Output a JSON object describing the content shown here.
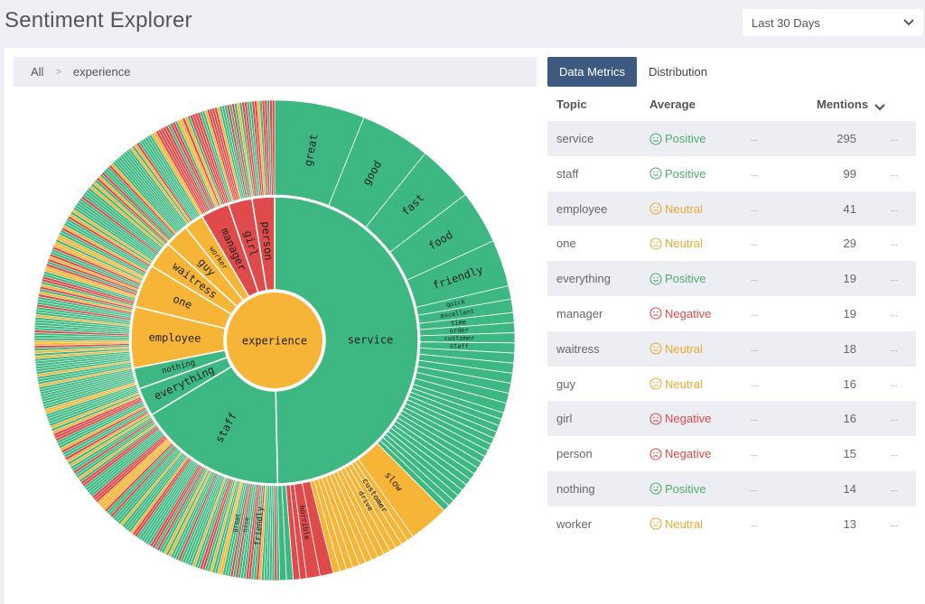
{
  "app": {
    "title": "Sentiment Explorer"
  },
  "date_range": {
    "selected": "Last 30 Days",
    "icon": "chevron-down-icon"
  },
  "breadcrumb": {
    "root": "All",
    "separator": ">",
    "current": "experience"
  },
  "tabs": [
    {
      "label": "Data Metrics",
      "active": true
    },
    {
      "label": "Distribution",
      "active": false
    }
  ],
  "table": {
    "headers": {
      "topic": "Topic",
      "average": "Average",
      "mentions": "Mentions"
    },
    "sort_icon": "chevron-down-icon",
    "rows": [
      {
        "topic": "service",
        "sentiment": "Positive",
        "mentions": "295",
        "more1": "...",
        "more2": "..."
      },
      {
        "topic": "staff",
        "sentiment": "Positive",
        "mentions": "99",
        "more1": "...",
        "more2": "..."
      },
      {
        "topic": "employee",
        "sentiment": "Neutral",
        "mentions": "41",
        "more1": "...",
        "more2": "..."
      },
      {
        "topic": "one",
        "sentiment": "Neutral",
        "mentions": "29",
        "more1": "...",
        "more2": "..."
      },
      {
        "topic": "everything",
        "sentiment": "Positive",
        "mentions": "19",
        "more1": "...",
        "more2": "..."
      },
      {
        "topic": "manager",
        "sentiment": "Negative",
        "mentions": "19",
        "more1": "...",
        "more2": "..."
      },
      {
        "topic": "waitress",
        "sentiment": "Neutral",
        "mentions": "18",
        "more1": "...",
        "more2": "..."
      },
      {
        "topic": "guy",
        "sentiment": "Neutral",
        "mentions": "16",
        "more1": "...",
        "more2": "..."
      },
      {
        "topic": "girl",
        "sentiment": "Negative",
        "mentions": "16",
        "more1": "...",
        "more2": "..."
      },
      {
        "topic": "person",
        "sentiment": "Negative",
        "mentions": "15",
        "more1": "...",
        "more2": "..."
      },
      {
        "topic": "nothing",
        "sentiment": "Positive",
        "mentions": "14",
        "more1": "...",
        "more2": "..."
      },
      {
        "topic": "worker",
        "sentiment": "Neutral",
        "mentions": "13",
        "more1": "...",
        "more2": "..."
      }
    ]
  },
  "colors": {
    "positive": "#3db883",
    "neutral": "#f6b536",
    "negative": "#df4a4a",
    "accent": "#3d5a80"
  },
  "chart_data": {
    "type": "sunburst",
    "center": {
      "label": "experience",
      "sentiment": "Neutral"
    },
    "ring1": [
      {
        "label": "service",
        "value": 295,
        "sentiment": "Positive"
      },
      {
        "label": "staff",
        "value": 99,
        "sentiment": "Positive"
      },
      {
        "label": "everything",
        "value": 19,
        "sentiment": "Positive"
      },
      {
        "label": "nothing",
        "value": 14,
        "sentiment": "Positive"
      },
      {
        "label": "employee",
        "value": 41,
        "sentiment": "Neutral"
      },
      {
        "label": "one",
        "value": 29,
        "sentiment": "Neutral"
      },
      {
        "label": "waitress",
        "value": 18,
        "sentiment": "Neutral"
      },
      {
        "label": "guy",
        "value": 16,
        "sentiment": "Neutral"
      },
      {
        "label": "worker",
        "value": 13,
        "sentiment": "Neutral"
      },
      {
        "label": "manager",
        "value": 19,
        "sentiment": "Negative"
      },
      {
        "label": "girl",
        "value": 16,
        "sentiment": "Negative"
      },
      {
        "label": "person",
        "value": 15,
        "sentiment": "Negative"
      }
    ],
    "ring2_labels": [
      {
        "parent": "service",
        "label": "great"
      },
      {
        "parent": "service",
        "label": "good"
      },
      {
        "parent": "service",
        "label": "fast"
      },
      {
        "parent": "service",
        "label": "food"
      },
      {
        "parent": "service",
        "label": "friendly"
      },
      {
        "parent": "service",
        "label": "quick"
      },
      {
        "parent": "service",
        "label": "excellent"
      },
      {
        "parent": "service",
        "label": "time"
      },
      {
        "parent": "service",
        "label": "order"
      },
      {
        "parent": "service",
        "label": "customer"
      },
      {
        "parent": "service",
        "label": "staff"
      },
      {
        "parent": "service",
        "label": "slow"
      },
      {
        "parent": "service",
        "label": "customer"
      },
      {
        "parent": "service",
        "label": "drive"
      },
      {
        "parent": "service",
        "label": "horrible"
      },
      {
        "parent": "staff",
        "label": "friendly"
      },
      {
        "parent": "staff",
        "label": "nice"
      },
      {
        "parent": "staff",
        "label": "great"
      }
    ]
  }
}
